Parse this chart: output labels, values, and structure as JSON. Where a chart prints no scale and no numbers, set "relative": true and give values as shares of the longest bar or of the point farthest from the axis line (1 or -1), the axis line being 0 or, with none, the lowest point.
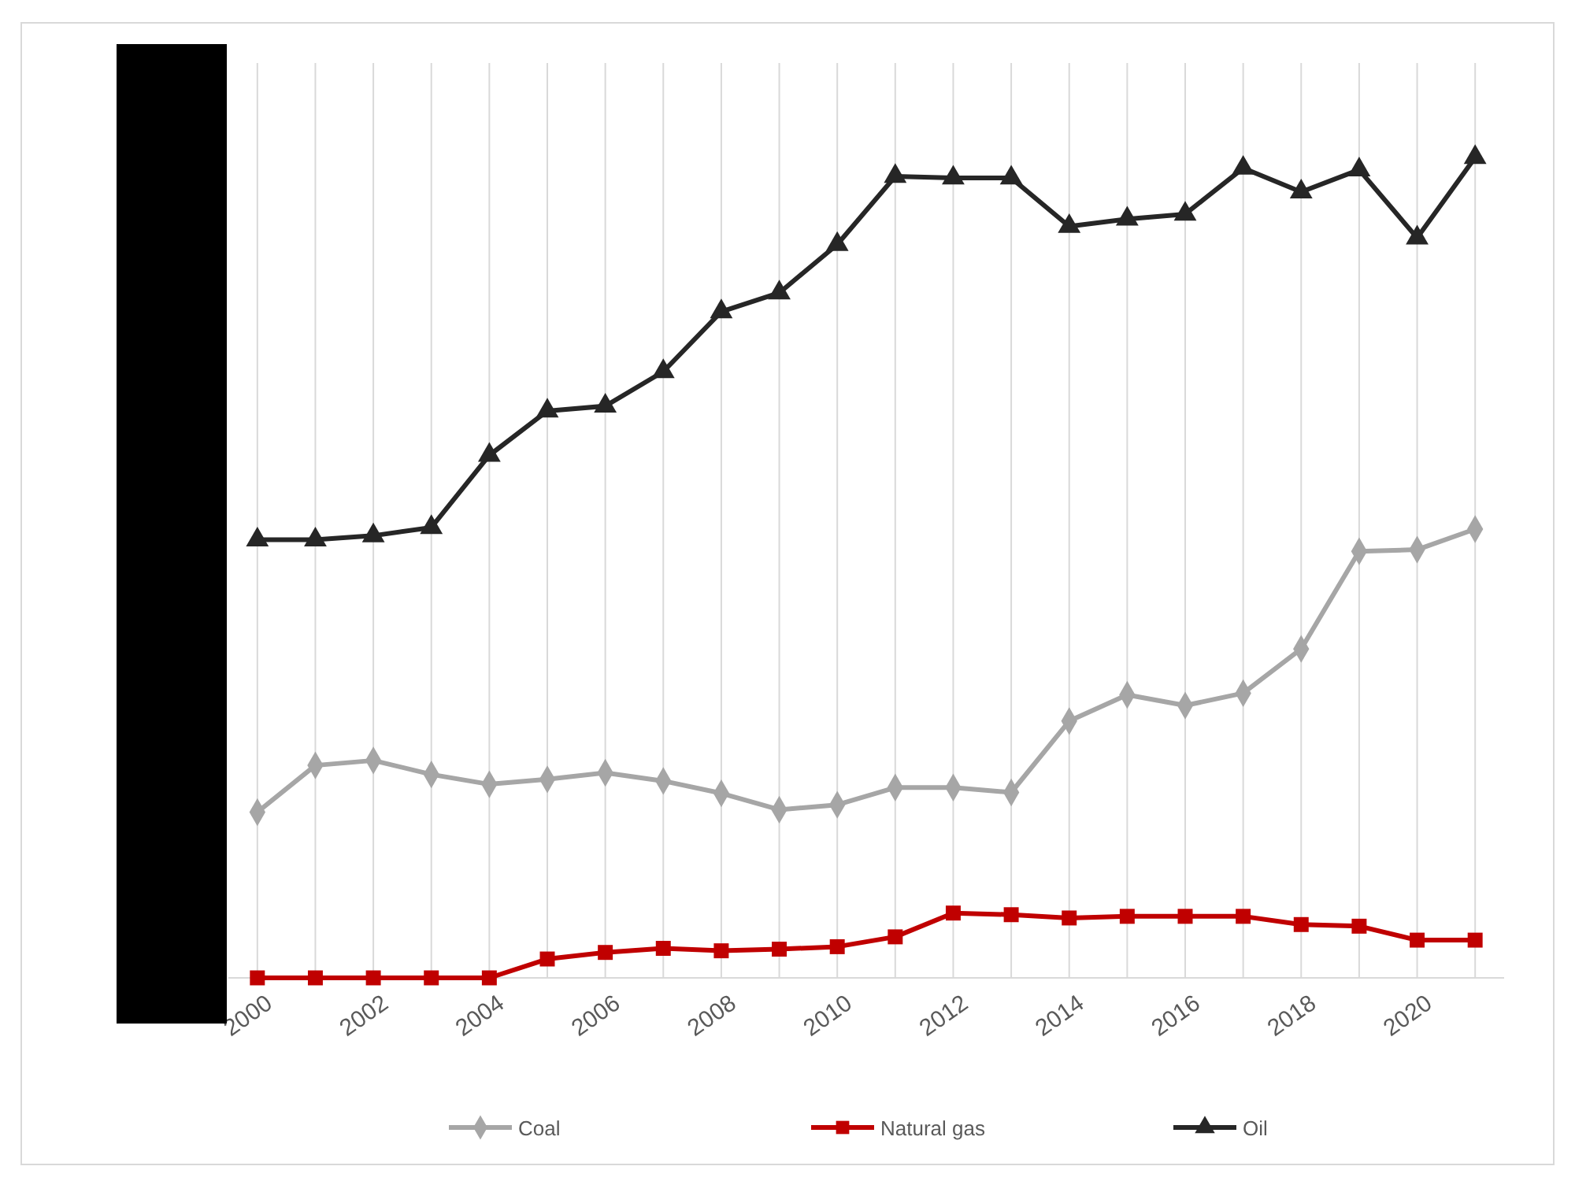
{
  "chart_data": {
    "type": "line",
    "relative": true,
    "x": [
      2000,
      2001,
      2002,
      2003,
      2004,
      2005,
      2006,
      2007,
      2008,
      2009,
      2010,
      2011,
      2012,
      2013,
      2014,
      2015,
      2016,
      2017,
      2018,
      2019,
      2020,
      2021
    ],
    "xlim": [
      1999.5,
      2021.5
    ],
    "xticks": [
      2000,
      {
        "value": 2001,
        "label": null
      },
      2002,
      {
        "value": 2003,
        "label": null
      },
      2004,
      {
        "value": 2005,
        "label": null
      },
      2006,
      {
        "value": 2007,
        "label": null
      },
      2008,
      {
        "value": 2009,
        "label": null
      },
      2010,
      {
        "value": 2011,
        "label": null
      },
      2012,
      {
        "value": 2013,
        "label": null
      },
      2014,
      {
        "value": 2015,
        "label": null
      },
      2016,
      {
        "value": 2017,
        "label": null
      },
      2018,
      {
        "value": 2019,
        "label": null
      },
      2020,
      {
        "value": 2021,
        "label": null
      }
    ],
    "series": [
      {
        "name": "Coal",
        "color": "#a6a6a6",
        "marker": "diamond",
        "values": [
          0.202,
          0.259,
          0.265,
          0.248,
          0.236,
          0.242,
          0.25,
          0.24,
          0.225,
          0.205,
          0.211,
          0.232,
          0.232,
          0.226,
          0.313,
          0.345,
          0.332,
          0.347,
          0.401,
          0.52,
          0.522,
          0.547
        ]
      },
      {
        "name": "Natural gas",
        "color": "#c00000",
        "marker": "square",
        "values": [
          0,
          0,
          0,
          0,
          0,
          0.023,
          0.031,
          0.036,
          0.033,
          0.035,
          0.038,
          0.05,
          0.079,
          0.077,
          0.073,
          0.075,
          0.075,
          0.075,
          0.065,
          0.063,
          0.046,
          0.046
        ]
      },
      {
        "name": "Oil",
        "color": "#262626",
        "marker": "triangle",
        "values": [
          0.534,
          0.534,
          0.539,
          0.549,
          0.637,
          0.691,
          0.697,
          0.739,
          0.812,
          0.835,
          0.894,
          0.977,
          0.975,
          0.975,
          0.916,
          0.925,
          0.931,
          0.987,
          0.958,
          0.985,
          0.902,
          1
        ]
      }
    ],
    "grid": "x",
    "legend": "bottom",
    "line_style": "solid"
  }
}
